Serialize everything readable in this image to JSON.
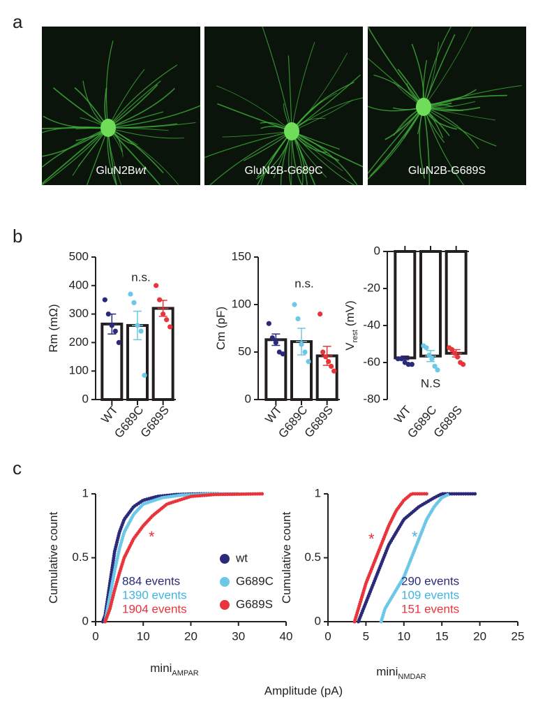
{
  "figure": {
    "panel_labels": [
      "a",
      "b",
      "c"
    ],
    "image_labels": [
      {
        "text": "GluN2B",
        "italic": "wt"
      },
      {
        "text": "GluN2B-G689C"
      },
      {
        "text": "GluN2B-G689S"
      }
    ],
    "x_label": "Amplitude (pA)"
  },
  "chart_data": [
    {
      "type": "bar",
      "ylabel": "Rm (mΩ)",
      "categories": [
        "WT",
        "G689C",
        "G689S"
      ],
      "values": [
        265,
        260,
        320
      ],
      "errors": [
        35,
        50,
        28
      ],
      "colors": [
        "#2b2a7a",
        "#6cc8e6",
        "#e8343a"
      ],
      "points": [
        [
          350,
          300,
          260,
          240,
          200
        ],
        [
          370,
          340,
          260,
          240,
          85
        ],
        [
          400,
          350,
          300,
          280,
          255
        ]
      ],
      "annotation": "n.s.",
      "ylim": [
        0,
        500
      ],
      "yticks": [
        0,
        100,
        200,
        300,
        400,
        500
      ]
    },
    {
      "type": "bar",
      "ylabel": "Cm (pF)",
      "categories": [
        "WT",
        "G689C",
        "G689S"
      ],
      "values": [
        63,
        61,
        46
      ],
      "errors": [
        6,
        14,
        10
      ],
      "colors": [
        "#2b2a7a",
        "#6cc8e6",
        "#e8343a"
      ],
      "points": [
        [
          80,
          65,
          60,
          50,
          48
        ],
        [
          100,
          85,
          58,
          50,
          40
        ],
        [
          90,
          50,
          45,
          40,
          35,
          30
        ]
      ],
      "annotation": "n.s.",
      "ylim": [
        0,
        150
      ],
      "yticks": [
        0,
        50,
        100,
        150
      ]
    },
    {
      "type": "bar",
      "ylabel": "V",
      "ylabel_sub": "rest",
      "ylabel_unit": "(mV)",
      "categories": [
        "WT",
        "G689C",
        "G689S"
      ],
      "values": [
        -57.5,
        -56.5,
        -55
      ],
      "errors": [
        1,
        3,
        2
      ],
      "colors": [
        "#2b2a7a",
        "#6cc8e6",
        "#e8343a"
      ],
      "points": [
        [
          -58,
          -58,
          -60,
          -61,
          -61
        ],
        [
          -51,
          -52,
          -56,
          -58,
          -62,
          -64
        ],
        [
          -52,
          -53,
          -55,
          -57,
          -60,
          -61
        ]
      ],
      "annotation": "N.S",
      "ylim": [
        -80,
        0
      ],
      "yticks": [
        -80,
        -60,
        -40,
        -20,
        0
      ]
    },
    {
      "type": "line",
      "ylabel": "Cumulative count",
      "xlabel": "mini",
      "xlabel_sub": "AMPAR",
      "xlim": [
        0,
        40
      ],
      "xticks": [
        0,
        10,
        20,
        30,
        40
      ],
      "ylim": [
        0,
        1
      ],
      "yticks": [
        0,
        0.5,
        1
      ],
      "legend": true,
      "series": [
        {
          "name": "wt",
          "color": "#2b2a7a",
          "x": [
            1.5,
            2,
            3,
            4,
            5,
            6,
            8,
            10,
            13,
            17,
            22,
            26
          ],
          "values": [
            0,
            0.05,
            0.3,
            0.55,
            0.7,
            0.8,
            0.9,
            0.95,
            0.98,
            0.995,
            1,
            1
          ]
        },
        {
          "name": "G689C",
          "color": "#6cc8e6",
          "x": [
            2,
            3,
            4,
            5,
            6,
            8,
            10,
            14,
            18,
            25,
            30
          ],
          "values": [
            0,
            0.2,
            0.4,
            0.57,
            0.7,
            0.84,
            0.92,
            0.97,
            0.99,
            1,
            1
          ]
        },
        {
          "name": "G689S",
          "color": "#e8343a",
          "x": [
            2,
            3,
            4,
            5,
            6,
            8,
            10,
            12,
            15,
            20,
            25,
            35
          ],
          "values": [
            0,
            0.1,
            0.25,
            0.38,
            0.5,
            0.65,
            0.75,
            0.83,
            0.92,
            0.98,
            0.995,
            1
          ]
        }
      ],
      "annotations": [
        {
          "text": "884 events",
          "color": "#2b2a7a"
        },
        {
          "text": "1390 events",
          "color": "#3fb4e0"
        },
        {
          "text": "1904 events",
          "color": "#e8343a"
        },
        {
          "text": "*",
          "color": "#e8343a"
        }
      ]
    },
    {
      "type": "line",
      "ylabel": "Cumulative count",
      "xlabel": "mini",
      "xlabel_sub": "NMDAR",
      "xlim": [
        0,
        25
      ],
      "xticks": [
        0,
        5,
        10,
        15,
        20,
        25
      ],
      "ylim": [
        0,
        1
      ],
      "yticks": [
        0,
        0.5,
        1
      ],
      "legend": false,
      "series": [
        {
          "color": "#2b2a7a",
          "x": [
            4,
            5,
            6,
            7,
            8,
            9,
            10,
            12,
            14,
            15,
            19.5
          ],
          "values": [
            0,
            0.15,
            0.3,
            0.45,
            0.6,
            0.7,
            0.8,
            0.9,
            0.97,
            1,
            1
          ]
        },
        {
          "color": "#6cc8e6",
          "x": [
            7,
            7.5,
            9,
            10,
            11,
            12,
            13,
            14,
            15,
            16
          ],
          "values": [
            0,
            0.1,
            0.25,
            0.35,
            0.5,
            0.65,
            0.8,
            0.9,
            0.97,
            1
          ]
        },
        {
          "color": "#e8343a",
          "x": [
            3.5,
            4,
            5,
            6,
            7,
            8,
            9,
            10,
            11,
            13
          ],
          "values": [
            0,
            0.1,
            0.3,
            0.45,
            0.6,
            0.75,
            0.87,
            0.95,
            1,
            1
          ]
        }
      ],
      "annotations": [
        {
          "text": "290 events",
          "color": "#2b2a7a"
        },
        {
          "text": "109 events",
          "color": "#3fb4e0"
        },
        {
          "text": "151 events",
          "color": "#e8343a"
        },
        {
          "text": "*",
          "color": "#e8343a"
        },
        {
          "text": "*",
          "color": "#3fb4e0"
        }
      ]
    }
  ]
}
